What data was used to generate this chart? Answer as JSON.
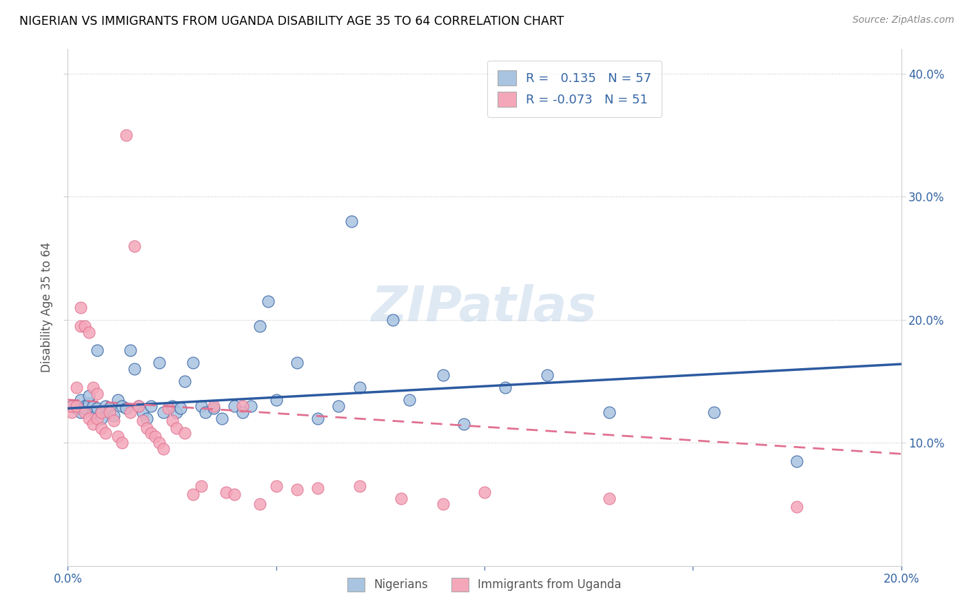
{
  "title": "NIGERIAN VS IMMIGRANTS FROM UGANDA DISABILITY AGE 35 TO 64 CORRELATION CHART",
  "source": "Source: ZipAtlas.com",
  "ylabel": "Disability Age 35 to 64",
  "xlim": [
    0.0,
    0.2
  ],
  "ylim": [
    0.0,
    0.42
  ],
  "xticks": [
    0.0,
    0.05,
    0.1,
    0.15,
    0.2
  ],
  "xticklabels": [
    "0.0%",
    "",
    "",
    "",
    "20.0%"
  ],
  "yticks": [
    0.1,
    0.2,
    0.3,
    0.4
  ],
  "yticklabels": [
    "10.0%",
    "20.0%",
    "30.0%",
    "40.0%"
  ],
  "blue_r": 0.135,
  "blue_n": 57,
  "pink_r": -0.073,
  "pink_n": 51,
  "blue_color": "#a8c4e0",
  "pink_color": "#f4a7b9",
  "blue_line_color": "#2c5aa0",
  "pink_line_color": "#e07090",
  "watermark": "ZIPatlas",
  "blue_points": [
    [
      0.001,
      0.13
    ],
    [
      0.002,
      0.128
    ],
    [
      0.003,
      0.125
    ],
    [
      0.003,
      0.135
    ],
    [
      0.004,
      0.13
    ],
    [
      0.004,
      0.128
    ],
    [
      0.005,
      0.132
    ],
    [
      0.005,
      0.138
    ],
    [
      0.006,
      0.125
    ],
    [
      0.006,
      0.13
    ],
    [
      0.007,
      0.128
    ],
    [
      0.007,
      0.175
    ],
    [
      0.008,
      0.125
    ],
    [
      0.008,
      0.12
    ],
    [
      0.009,
      0.13
    ],
    [
      0.01,
      0.128
    ],
    [
      0.011,
      0.122
    ],
    [
      0.012,
      0.135
    ],
    [
      0.013,
      0.13
    ],
    [
      0.014,
      0.128
    ],
    [
      0.015,
      0.175
    ],
    [
      0.016,
      0.16
    ],
    [
      0.017,
      0.13
    ],
    [
      0.018,
      0.125
    ],
    [
      0.019,
      0.12
    ],
    [
      0.02,
      0.13
    ],
    [
      0.022,
      0.165
    ],
    [
      0.023,
      0.125
    ],
    [
      0.025,
      0.13
    ],
    [
      0.026,
      0.125
    ],
    [
      0.027,
      0.128
    ],
    [
      0.028,
      0.15
    ],
    [
      0.03,
      0.165
    ],
    [
      0.032,
      0.13
    ],
    [
      0.033,
      0.125
    ],
    [
      0.035,
      0.128
    ],
    [
      0.037,
      0.12
    ],
    [
      0.04,
      0.13
    ],
    [
      0.042,
      0.125
    ],
    [
      0.044,
      0.13
    ],
    [
      0.046,
      0.195
    ],
    [
      0.048,
      0.215
    ],
    [
      0.05,
      0.135
    ],
    [
      0.055,
      0.165
    ],
    [
      0.06,
      0.12
    ],
    [
      0.065,
      0.13
    ],
    [
      0.068,
      0.28
    ],
    [
      0.07,
      0.145
    ],
    [
      0.078,
      0.2
    ],
    [
      0.082,
      0.135
    ],
    [
      0.09,
      0.155
    ],
    [
      0.095,
      0.115
    ],
    [
      0.105,
      0.145
    ],
    [
      0.115,
      0.155
    ],
    [
      0.13,
      0.125
    ],
    [
      0.155,
      0.125
    ],
    [
      0.175,
      0.085
    ]
  ],
  "pink_points": [
    [
      0.001,
      0.125
    ],
    [
      0.001,
      0.13
    ],
    [
      0.002,
      0.145
    ],
    [
      0.002,
      0.13
    ],
    [
      0.003,
      0.195
    ],
    [
      0.003,
      0.21
    ],
    [
      0.004,
      0.195
    ],
    [
      0.004,
      0.125
    ],
    [
      0.005,
      0.19
    ],
    [
      0.005,
      0.12
    ],
    [
      0.006,
      0.145
    ],
    [
      0.006,
      0.115
    ],
    [
      0.007,
      0.14
    ],
    [
      0.007,
      0.12
    ],
    [
      0.008,
      0.125
    ],
    [
      0.008,
      0.112
    ],
    [
      0.009,
      0.108
    ],
    [
      0.01,
      0.125
    ],
    [
      0.011,
      0.118
    ],
    [
      0.012,
      0.105
    ],
    [
      0.013,
      0.1
    ],
    [
      0.014,
      0.35
    ],
    [
      0.015,
      0.125
    ],
    [
      0.016,
      0.26
    ],
    [
      0.017,
      0.13
    ],
    [
      0.018,
      0.118
    ],
    [
      0.019,
      0.112
    ],
    [
      0.02,
      0.108
    ],
    [
      0.021,
      0.105
    ],
    [
      0.022,
      0.1
    ],
    [
      0.023,
      0.095
    ],
    [
      0.024,
      0.128
    ],
    [
      0.025,
      0.118
    ],
    [
      0.026,
      0.112
    ],
    [
      0.028,
      0.108
    ],
    [
      0.03,
      0.058
    ],
    [
      0.032,
      0.065
    ],
    [
      0.035,
      0.13
    ],
    [
      0.038,
      0.06
    ],
    [
      0.04,
      0.058
    ],
    [
      0.042,
      0.13
    ],
    [
      0.046,
      0.05
    ],
    [
      0.05,
      0.065
    ],
    [
      0.055,
      0.062
    ],
    [
      0.06,
      0.063
    ],
    [
      0.07,
      0.065
    ],
    [
      0.08,
      0.055
    ],
    [
      0.09,
      0.05
    ],
    [
      0.1,
      0.06
    ],
    [
      0.13,
      0.055
    ],
    [
      0.175,
      0.048
    ]
  ]
}
